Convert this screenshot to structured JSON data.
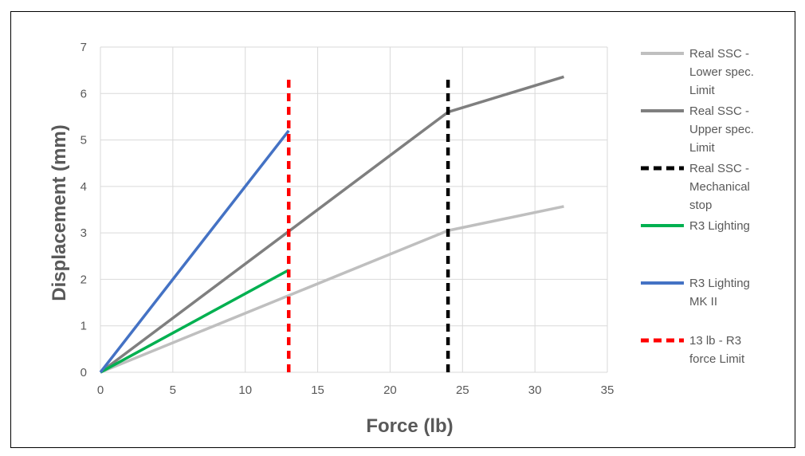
{
  "chart_data": {
    "type": "line",
    "xlabel": "Force (lb)",
    "ylabel": "Displacement (mm)",
    "xlim": [
      0,
      35
    ],
    "ylim": [
      0,
      7
    ],
    "xticks": [
      0,
      5,
      10,
      15,
      20,
      25,
      30,
      35
    ],
    "yticks": [
      0,
      1,
      2,
      3,
      4,
      5,
      6,
      7
    ],
    "grid": true,
    "legend_position": "right",
    "series": [
      {
        "name": "Real SSC - Lower spec. Limit",
        "name_lines": [
          "Real SSC -",
          "Lower spec.",
          "Limit"
        ],
        "color": "#BFBFBF",
        "dash": "solid",
        "points": [
          [
            0,
            0
          ],
          [
            24,
            3.05
          ],
          [
            32,
            3.57
          ]
        ]
      },
      {
        "name": "Real SSC - Upper spec. Limit",
        "name_lines": [
          "Real SSC -",
          "Upper spec.",
          "Limit"
        ],
        "color": "#7F7F7F",
        "dash": "solid",
        "points": [
          [
            0,
            0
          ],
          [
            24,
            5.6
          ],
          [
            32,
            6.36
          ]
        ]
      },
      {
        "name": "Real SSC - Mechanical stop",
        "name_lines": [
          "Real SSC -",
          "Mechanical",
          "stop"
        ],
        "color": "#000000",
        "dash": "dashed",
        "points": [
          [
            24,
            0
          ],
          [
            24,
            6.4
          ]
        ]
      },
      {
        "name": "R3 Lighting",
        "name_lines": [
          "R3 Lighting"
        ],
        "color": "#00B050",
        "dash": "solid",
        "points": [
          [
            0,
            0
          ],
          [
            13,
            2.2
          ]
        ]
      },
      {
        "name": "R3 Lighting MK II",
        "name_lines": [
          "R3 Lighting",
          "MK II"
        ],
        "color": "#4472C4",
        "dash": "solid",
        "points": [
          [
            0,
            0
          ],
          [
            13,
            5.2
          ]
        ]
      },
      {
        "name": "13 lb - R3 force Limit",
        "name_lines": [
          "13 lb - R3",
          "force Limit"
        ],
        "color": "#FF0000",
        "dash": "dashed",
        "points": [
          [
            13,
            0
          ],
          [
            13,
            6.4
          ]
        ]
      }
    ]
  }
}
